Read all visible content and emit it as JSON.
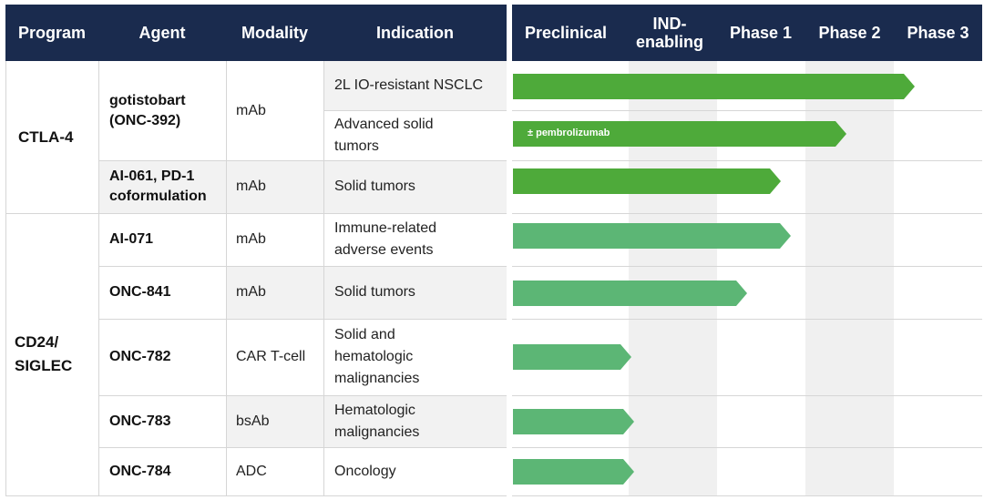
{
  "headers": {
    "program": "Program",
    "agent": "Agent",
    "modality": "Modality",
    "indication": "Indication",
    "phases": [
      "Preclinical",
      "IND-\nenabling",
      "Phase 1",
      "Phase 2",
      "Phase 3"
    ]
  },
  "programs": [
    {
      "name": "CTLA-4"
    },
    {
      "name": "CD24/\nSIGLEC"
    }
  ],
  "rows": [
    {
      "agent": "gotistobart\n(ONC-392)",
      "modality": "mAb",
      "indication": "2L IO-resistant NSCLC",
      "progress_phase": 4.55,
      "color": "#4eaa3a",
      "bar_label": ""
    },
    {
      "agent": "",
      "modality": "",
      "indication": "Advanced solid\ntumors",
      "progress_phase": 3.77,
      "color": "#4eaa3a",
      "bar_label": "± pembrolizumab"
    },
    {
      "agent": "AI-061, PD-1\ncoformulation",
      "modality": "mAb",
      "indication": "Solid tumors",
      "progress_phase": 3.03,
      "color": "#4eaa3a",
      "bar_label": ""
    },
    {
      "agent": "AI-071",
      "modality": "mAb",
      "indication": "Immune-related\nadverse events",
      "progress_phase": 3.14,
      "color": "#5cb675",
      "bar_label": ""
    },
    {
      "agent": "ONC-841",
      "modality": "mAb",
      "indication": "Solid tumors",
      "progress_phase": 2.65,
      "color": "#5cb675",
      "bar_label": ""
    },
    {
      "agent": "ONC-782",
      "modality": "CAR T-cell",
      "indication": "Solid and\nhematologic\nmalignancies",
      "progress_phase": 1.34,
      "color": "#5cb675",
      "bar_label": ""
    },
    {
      "agent": "ONC-783",
      "modality": "bsAb",
      "indication": "Hematologic\nmalignancies",
      "progress_phase": 1.37,
      "color": "#5cb675",
      "bar_label": ""
    },
    {
      "agent": "ONC-784",
      "modality": "ADC",
      "indication": "Oncology",
      "progress_phase": 1.37,
      "color": "#5cb675",
      "bar_label": ""
    }
  ]
}
